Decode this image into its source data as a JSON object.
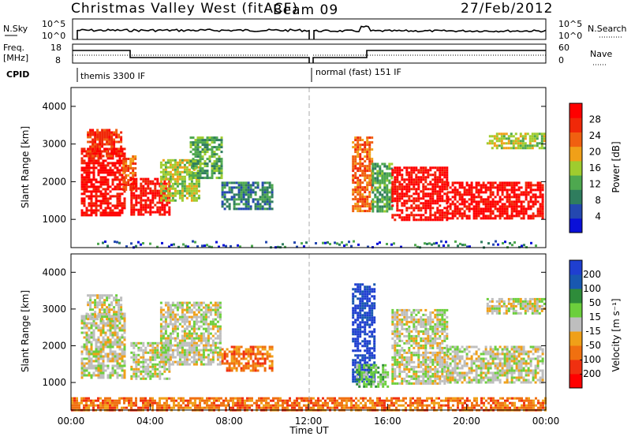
{
  "header": {
    "title": "Christmas Valley West (fitACF)",
    "beam": "Beam 09",
    "date": "27/Feb/2012"
  },
  "top_panels": {
    "nsky_label": "N.Sky",
    "nsky_ticks": [
      "10^5",
      "10^0"
    ],
    "nsearch_label": "N.Search",
    "nsearch_ticks": [
      "10^5",
      "10^0"
    ],
    "freq_label_1": "Freq.",
    "freq_label_2": "[MHz]",
    "freq_ticks": [
      "18",
      "8"
    ],
    "nave_label": "Nave",
    "nave_ticks": [
      "60",
      "0"
    ],
    "cpid_label": "CPID",
    "cpid_1": "themis 3300 IF",
    "cpid_2": "normal (fast) 151 IF"
  },
  "colors": {
    "power_scale": [
      "#0a10d8",
      "#2448b0",
      "#2f7d5e",
      "#4ea84f",
      "#9fcc2e",
      "#f0a018",
      "#f06010",
      "#f02808",
      "#ff0000"
    ],
    "velocity_scale": [
      "#1f3fd0",
      "#1858b0",
      "#2e8c3a",
      "#6ccf3c",
      "#bebebe",
      "#f0a018",
      "#f07010",
      "#f03010",
      "#ff0000"
    ],
    "grey": "#c8c8c8"
  },
  "chart_data": [
    {
      "type": "heatmap",
      "panel": "power",
      "ylabel": "Slant Range [km]",
      "yticks": [
        "4000",
        "3000",
        "2000",
        "1000"
      ],
      "ylim": [
        250,
        4500
      ],
      "xlim": [
        0,
        24
      ],
      "colorbar_label": "Power [dB]",
      "colorbar_ticks": [
        "28",
        "24",
        "20",
        "16",
        "12",
        "8",
        "4"
      ],
      "features": [
        {
          "t": [
            0.5,
            2.7
          ],
          "r": [
            1100,
            2900
          ],
          "level": 8
        },
        {
          "t": [
            0.8,
            2.5
          ],
          "r": [
            2700,
            3400
          ],
          "level": 7
        },
        {
          "t": [
            2.6,
            3.2
          ],
          "r": [
            1800,
            2700
          ],
          "level": 6
        },
        {
          "t": [
            3.0,
            5.0
          ],
          "r": [
            1100,
            2100
          ],
          "level": 8
        },
        {
          "t": [
            4.5,
            6.5
          ],
          "r": [
            1500,
            2600
          ],
          "level": 4
        },
        {
          "t": [
            6.0,
            7.6
          ],
          "r": [
            2100,
            3200
          ],
          "level": 3
        },
        {
          "t": [
            7.6,
            10.2
          ],
          "r": [
            1300,
            2000
          ],
          "level": 2
        },
        {
          "t": [
            14.2,
            15.2
          ],
          "r": [
            1200,
            3200
          ],
          "level": 6
        },
        {
          "t": [
            15.2,
            16.2
          ],
          "r": [
            1200,
            2500
          ],
          "level": 3
        },
        {
          "t": [
            16.2,
            19.0
          ],
          "r": [
            1000,
            2400
          ],
          "level": 8
        },
        {
          "t": [
            19.0,
            23.9
          ],
          "r": [
            1000,
            2000
          ],
          "level": 8
        },
        {
          "t": [
            21.0,
            23.9
          ],
          "r": [
            2900,
            3300
          ],
          "level": 4
        }
      ]
    },
    {
      "type": "heatmap",
      "panel": "velocity",
      "ylabel": "Slant Range [km]",
      "yticks": [
        "4000",
        "3000",
        "2000",
        "1000"
      ],
      "ylim": [
        250,
        4500
      ],
      "xlim": [
        0,
        24
      ],
      "xticks": [
        "00:00",
        "04:00",
        "08:00",
        "12:00",
        "16:00",
        "20:00",
        "00:00"
      ],
      "xlabel": "Time UT",
      "colorbar_label": "Velocity [m s⁻¹]",
      "colorbar_ticks": [
        "200",
        "100",
        "50",
        "15",
        "-15",
        "-50",
        "-100",
        "-200"
      ],
      "features": [
        {
          "t": [
            0.5,
            2.7
          ],
          "r": [
            1100,
            2900
          ],
          "level": 4
        },
        {
          "t": [
            0.8,
            2.5
          ],
          "r": [
            2700,
            3400
          ],
          "level": 4
        },
        {
          "t": [
            3.0,
            5.0
          ],
          "r": [
            1100,
            2100
          ],
          "level": 4
        },
        {
          "t": [
            4.5,
            7.6
          ],
          "r": [
            1500,
            3200
          ],
          "level": 4
        },
        {
          "t": [
            7.6,
            10.2
          ],
          "r": [
            1300,
            2000
          ],
          "level": 6
        },
        {
          "t": [
            14.2,
            15.3
          ],
          "r": [
            1000,
            3700
          ],
          "level": 0
        },
        {
          "t": [
            14.4,
            16.0
          ],
          "r": [
            900,
            1500
          ],
          "level": 3
        },
        {
          "t": [
            16.2,
            19.0
          ],
          "r": [
            1000,
            3000
          ],
          "level": 4
        },
        {
          "t": [
            19.0,
            23.9
          ],
          "r": [
            1000,
            2000
          ],
          "level": 4
        },
        {
          "t": [
            21.0,
            23.9
          ],
          "r": [
            2900,
            3300
          ],
          "level": 4
        },
        {
          "t": [
            0.0,
            24.0
          ],
          "r": [
            250,
            600
          ],
          "level": 6
        }
      ]
    }
  ]
}
